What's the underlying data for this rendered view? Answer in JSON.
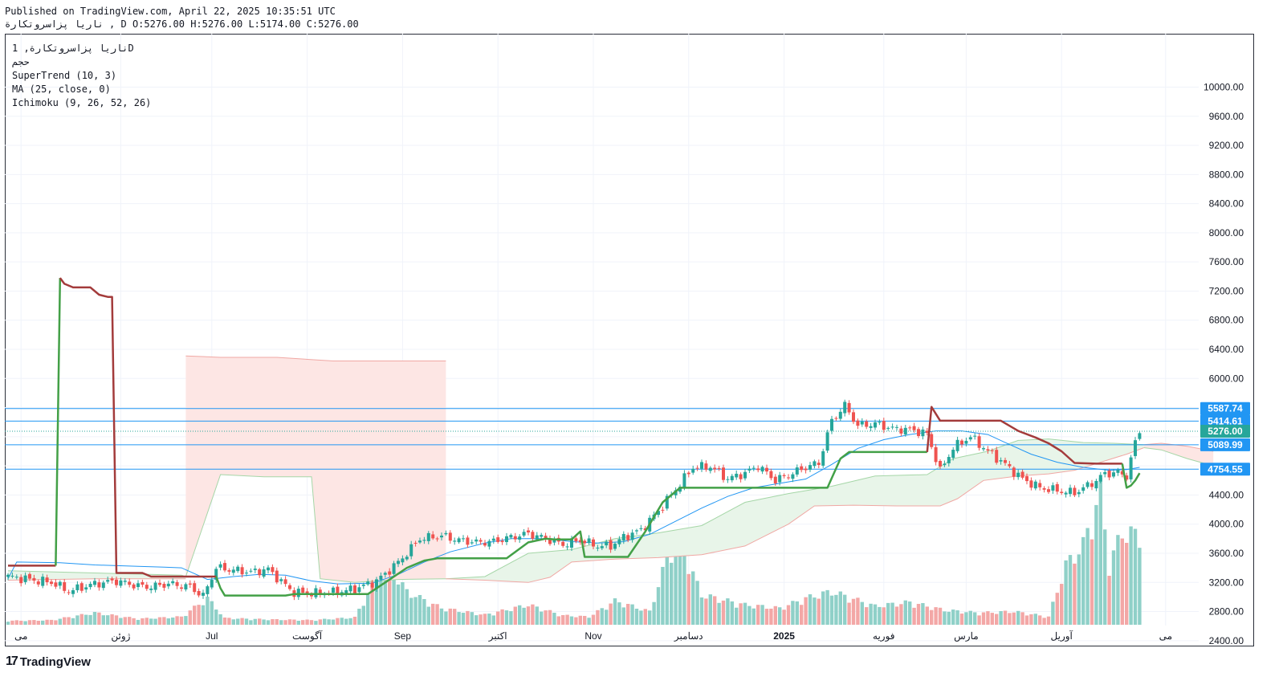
{
  "header": {
    "published": "Published on TradingView.com, April 22, 2025 10:35:51 UTC",
    "ohlc": "ناریا پزاسروتکارة , D O:5276.00 H:5276.00 L:5174.00 C:5276.00"
  },
  "legend": {
    "symbol": "ناریا پزاسروتکارة, 1D",
    "volume_label": "حجم",
    "supertrend": "SuperTrend (10, 3)",
    "ma": "MA (25, close, 0)",
    "ichimoku": "Ichimoku (9, 26, 52, 26)"
  },
  "brand": {
    "name": "TradingView"
  },
  "colors": {
    "up": "#26a69a",
    "down": "#ef5350",
    "up_volume": "#8fd0c8",
    "down_volume": "#f3a7a6",
    "supertrend_up": "#43a047",
    "supertrend_down": "#a33b3b",
    "ma": "#2196f3",
    "cloud_bull": "#e8f5e9",
    "cloud_bear": "#fde6e4",
    "hline": "#2196f3"
  },
  "chart_data": {
    "type": "candlestick",
    "y_axis": {
      "min": 2250,
      "max": 10300,
      "ticks": [
        2400,
        2800,
        3200,
        3600,
        4000,
        4400,
        4800,
        5200,
        5600,
        6000,
        6400,
        6800,
        7200,
        7600,
        8000,
        8400,
        8800,
        9200,
        9600,
        10000
      ],
      "tick_labels": [
        "2400.00",
        "2800.00",
        "3200.00",
        "3600.00",
        "4000.00",
        "4400.00",
        "",
        "",
        "",
        "6000.00",
        "6400.00",
        "6800.00",
        "7200.00",
        "7600.00",
        "8000.00",
        "8400.00",
        "8800.00",
        "9200.00",
        "9600.00",
        "10000.00"
      ]
    },
    "x_axis": {
      "labels": [
        {
          "text": "می",
          "bar": 3,
          "bold": false
        },
        {
          "text": "ژوئن",
          "bar": 26,
          "bold": false
        },
        {
          "text": "Jul",
          "bar": 47,
          "bold": false
        },
        {
          "text": "آگوست",
          "bar": 69,
          "bold": false
        },
        {
          "text": "Sep",
          "bar": 91,
          "bold": false
        },
        {
          "text": "اکتبر",
          "bar": 113,
          "bold": false
        },
        {
          "text": "Nov",
          "bar": 135,
          "bold": false
        },
        {
          "text": "دسامبر",
          "bar": 157,
          "bold": false
        },
        {
          "text": "2025",
          "bar": 179,
          "bold": true
        },
        {
          "text": "فوریه",
          "bar": 202,
          "bold": false
        },
        {
          "text": "مارس",
          "bar": 221,
          "bold": false
        },
        {
          "text": "آوریل",
          "bar": 243,
          "bold": false
        },
        {
          "text": "می",
          "bar": 267,
          "bold": false
        }
      ],
      "bars_total": 278
    },
    "price_lines": [
      {
        "value": 5587.74,
        "label": "5587.74"
      },
      {
        "value": 5414.61,
        "label": "5414.61"
      },
      {
        "value": 5089.99,
        "label": "5089.99"
      },
      {
        "value": 4754.55,
        "label": "4754.55"
      }
    ],
    "last_price": {
      "value": 5276.0,
      "label": "5276.00"
    },
    "anchors_close": [
      [
        0,
        3280
      ],
      [
        10,
        3200
      ],
      [
        14,
        3080
      ],
      [
        20,
        3180
      ],
      [
        25,
        3220
      ],
      [
        30,
        3150
      ],
      [
        33,
        3140
      ],
      [
        37,
        3180
      ],
      [
        42,
        3140
      ],
      [
        45,
        3010
      ],
      [
        48,
        3400
      ],
      [
        52,
        3370
      ],
      [
        56,
        3340
      ],
      [
        60,
        3380
      ],
      [
        63,
        3210
      ],
      [
        66,
        3060
      ],
      [
        70,
        3050
      ],
      [
        75,
        3060
      ],
      [
        80,
        3110
      ],
      [
        85,
        3220
      ],
      [
        89,
        3420
      ],
      [
        92,
        3600
      ],
      [
        95,
        3800
      ],
      [
        100,
        3840
      ],
      [
        104,
        3780
      ],
      [
        108,
        3750
      ],
      [
        112,
        3760
      ],
      [
        116,
        3820
      ],
      [
        120,
        3870
      ],
      [
        124,
        3800
      ],
      [
        128,
        3720
      ],
      [
        132,
        3780
      ],
      [
        136,
        3700
      ],
      [
        139,
        3700
      ],
      [
        142,
        3820
      ],
      [
        146,
        3920
      ],
      [
        150,
        4180
      ],
      [
        154,
        4480
      ],
      [
        158,
        4780
      ],
      [
        162,
        4790
      ],
      [
        166,
        4620
      ],
      [
        170,
        4700
      ],
      [
        173,
        4800
      ],
      [
        177,
        4600
      ],
      [
        181,
        4700
      ],
      [
        184,
        4780
      ],
      [
        187,
        4840
      ],
      [
        190,
        5420
      ],
      [
        193,
        5630
      ],
      [
        196,
        5350
      ],
      [
        200,
        5380
      ],
      [
        204,
        5310
      ],
      [
        208,
        5300
      ],
      [
        212,
        5240
      ],
      [
        215,
        4730
      ],
      [
        218,
        5050
      ],
      [
        222,
        5200
      ],
      [
        226,
        5000
      ],
      [
        230,
        4820
      ],
      [
        234,
        4620
      ],
      [
        238,
        4500
      ],
      [
        242,
        4460
      ],
      [
        246,
        4430
      ],
      [
        250,
        4560
      ],
      [
        253,
        4690
      ],
      [
        256,
        4710
      ],
      [
        258,
        4660
      ],
      [
        260,
        5120
      ],
      [
        261,
        5276
      ]
    ],
    "volume_anchors": [
      [
        0,
        60
      ],
      [
        10,
        70
      ],
      [
        20,
        180
      ],
      [
        30,
        90
      ],
      [
        40,
        120
      ],
      [
        46,
        400
      ],
      [
        50,
        100
      ],
      [
        60,
        80
      ],
      [
        70,
        70
      ],
      [
        80,
        110
      ],
      [
        87,
        960
      ],
      [
        92,
        500
      ],
      [
        100,
        250
      ],
      [
        110,
        150
      ],
      [
        120,
        300
      ],
      [
        128,
        140
      ],
      [
        134,
        120
      ],
      [
        140,
        360
      ],
      [
        148,
        200
      ],
      [
        154,
        1380
      ],
      [
        160,
        450
      ],
      [
        170,
        300
      ],
      [
        178,
        250
      ],
      [
        184,
        400
      ],
      [
        190,
        500
      ],
      [
        200,
        280
      ],
      [
        208,
        340
      ],
      [
        216,
        220
      ],
      [
        224,
        180
      ],
      [
        232,
        200
      ],
      [
        240,
        120
      ],
      [
        244,
        900
      ],
      [
        248,
        1200
      ],
      [
        252,
        2000
      ],
      [
        254,
        900
      ],
      [
        257,
        1400
      ],
      [
        260,
        1350
      ]
    ],
    "supertrend": [
      {
        "trend": "down",
        "points": [
          [
            0,
            3430
          ],
          [
            11,
            3430
          ]
        ]
      },
      {
        "trend": "up",
        "points": [
          [
            11,
            3430
          ],
          [
            12,
            7380
          ]
        ]
      },
      {
        "trend": "down",
        "points": [
          [
            12,
            7380
          ],
          [
            13,
            7300
          ],
          [
            15,
            7250
          ],
          [
            19,
            7250
          ],
          [
            21,
            7150
          ],
          [
            23,
            7120
          ],
          [
            24,
            7120
          ],
          [
            25,
            3330
          ],
          [
            31,
            3330
          ],
          [
            33,
            3280
          ],
          [
            48,
            3280
          ]
        ]
      },
      {
        "trend": "up",
        "points": [
          [
            48,
            3280
          ],
          [
            49,
            3120
          ],
          [
            50,
            3020
          ],
          [
            64,
            3020
          ],
          [
            66,
            3040
          ],
          [
            83,
            3040
          ],
          [
            87,
            3200
          ],
          [
            92,
            3400
          ],
          [
            96,
            3500
          ],
          [
            99,
            3530
          ],
          [
            115,
            3530
          ],
          [
            120,
            3750
          ],
          [
            124,
            3800
          ],
          [
            126,
            3790
          ],
          [
            130,
            3790
          ],
          [
            132,
            3900
          ],
          [
            133,
            3550
          ],
          [
            143,
            3550
          ],
          [
            147,
            3900
          ],
          [
            151,
            4300
          ],
          [
            155,
            4500
          ],
          [
            189,
            4500
          ],
          [
            192,
            4900
          ],
          [
            194,
            4990
          ],
          [
            212,
            4990
          ]
        ]
      },
      {
        "trend": "down",
        "points": [
          [
            212,
            4990
          ],
          [
            213,
            5610
          ],
          [
            215,
            5420
          ],
          [
            229,
            5420
          ],
          [
            233,
            5280
          ],
          [
            237,
            5190
          ],
          [
            240,
            5110
          ],
          [
            243,
            5000
          ],
          [
            246,
            4840
          ],
          [
            251,
            4830
          ],
          [
            257,
            4830
          ]
        ]
      },
      {
        "trend": "up",
        "points": [
          [
            257,
            4830
          ],
          [
            258,
            4500
          ],
          [
            259,
            4530
          ],
          [
            260,
            4600
          ],
          [
            261,
            4700
          ]
        ]
      }
    ],
    "ichimoku_cloud": [
      {
        "trend": "bull",
        "upper": [
          [
            0,
            3360
          ],
          [
            20,
            3330
          ],
          [
            40,
            3300
          ],
          [
            41,
            3280
          ]
        ],
        "lower": [
          [
            0,
            3230
          ],
          [
            20,
            3250
          ],
          [
            40,
            3250
          ],
          [
            41,
            3250
          ]
        ]
      },
      {
        "trend": "bear",
        "upper": [
          [
            41,
            6310
          ],
          [
            49,
            6290
          ],
          [
            62,
            6290
          ],
          [
            75,
            6240
          ],
          [
            100,
            6240
          ],
          [
            101,
            6240
          ]
        ],
        "lower": [
          [
            41,
            3280
          ],
          [
            49,
            4680
          ],
          [
            59,
            4650
          ],
          [
            70,
            4650
          ],
          [
            72,
            3250
          ],
          [
            80,
            3200
          ],
          [
            90,
            3240
          ],
          [
            101,
            3250
          ]
        ]
      },
      {
        "trend": "bull",
        "upper": [
          [
            101,
            3250
          ],
          [
            110,
            3280
          ],
          [
            120,
            3600
          ],
          [
            130,
            3650
          ],
          [
            140,
            3800
          ],
          [
            150,
            3880
          ],
          [
            160,
            3980
          ],
          [
            170,
            4300
          ],
          [
            180,
            4420
          ],
          [
            190,
            4520
          ],
          [
            200,
            4660
          ],
          [
            212,
            4680
          ],
          [
            218,
            4900
          ],
          [
            226,
            5000
          ],
          [
            233,
            5150
          ],
          [
            240,
            5170
          ],
          [
            248,
            5120
          ],
          [
            255,
            5110
          ],
          [
            262,
            5090
          ]
        ],
        "lower": [
          [
            101,
            3250
          ],
          [
            110,
            3230
          ],
          [
            120,
            3200
          ],
          [
            125,
            3270
          ],
          [
            130,
            3480
          ],
          [
            140,
            3520
          ],
          [
            150,
            3540
          ],
          [
            160,
            3580
          ],
          [
            170,
            3700
          ],
          [
            180,
            4000
          ],
          [
            186,
            4250
          ],
          [
            195,
            4260
          ],
          [
            205,
            4250
          ],
          [
            215,
            4250
          ],
          [
            219,
            4350
          ],
          [
            225,
            4600
          ],
          [
            233,
            4660
          ],
          [
            240,
            4690
          ],
          [
            246,
            4740
          ],
          [
            252,
            4850
          ],
          [
            258,
            4960
          ],
          [
            262,
            5050
          ]
        ]
      },
      {
        "trend": "bear",
        "upper": [
          [
            262,
            5090
          ],
          [
            266,
            5110
          ],
          [
            272,
            5070
          ],
          [
            278,
            5000
          ]
        ],
        "lower": [
          [
            262,
            5050
          ],
          [
            266,
            5020
          ],
          [
            272,
            4900
          ],
          [
            278,
            4800
          ]
        ]
      }
    ],
    "ma_line": [
      [
        0,
        3250
      ],
      [
        2,
        3480
      ],
      [
        12,
        3470
      ],
      [
        20,
        3440
      ],
      [
        30,
        3420
      ],
      [
        36,
        3410
      ],
      [
        40,
        3400
      ],
      [
        46,
        3240
      ],
      [
        52,
        3280
      ],
      [
        58,
        3310
      ],
      [
        64,
        3300
      ],
      [
        70,
        3220
      ],
      [
        76,
        3180
      ],
      [
        84,
        3190
      ],
      [
        90,
        3310
      ],
      [
        96,
        3480
      ],
      [
        102,
        3620
      ],
      [
        110,
        3740
      ],
      [
        116,
        3800
      ],
      [
        124,
        3800
      ],
      [
        130,
        3760
      ],
      [
        136,
        3740
      ],
      [
        142,
        3760
      ],
      [
        148,
        3860
      ],
      [
        154,
        4040
      ],
      [
        160,
        4220
      ],
      [
        166,
        4380
      ],
      [
        172,
        4500
      ],
      [
        178,
        4560
      ],
      [
        184,
        4620
      ],
      [
        190,
        4820
      ],
      [
        196,
        5040
      ],
      [
        202,
        5160
      ],
      [
        208,
        5230
      ],
      [
        214,
        5280
      ],
      [
        220,
        5280
      ],
      [
        226,
        5230
      ],
      [
        230,
        5120
      ],
      [
        236,
        4960
      ],
      [
        242,
        4850
      ],
      [
        248,
        4780
      ],
      [
        254,
        4740
      ],
      [
        258,
        4750
      ],
      [
        261,
        4780
      ]
    ]
  }
}
